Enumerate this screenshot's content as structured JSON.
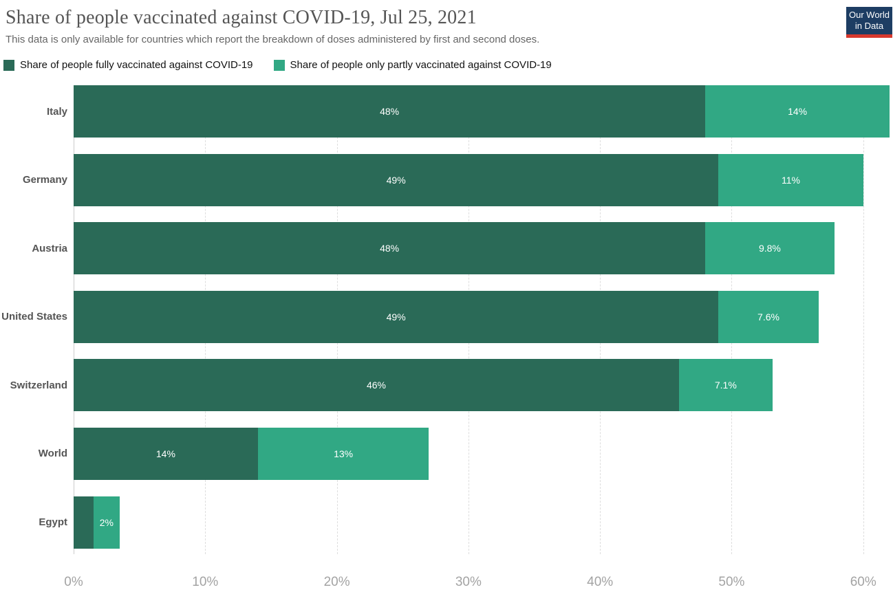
{
  "header": {
    "title": "Share of people vaccinated against COVID-19, Jul 25, 2021",
    "subtitle": "This data is only available for countries which report the breakdown of doses administered by first and second doses."
  },
  "logo": {
    "line1": "Our World",
    "line2": "in Data",
    "bg_color": "#1d3d63",
    "stripe_color": "#d7382d"
  },
  "chart_data": {
    "type": "bar",
    "orientation": "horizontal",
    "stacked": true,
    "title": "Share of people vaccinated against COVID-19, Jul 25, 2021",
    "categories": [
      "Italy",
      "Germany",
      "Austria",
      "United States",
      "Switzerland",
      "World",
      "Egypt"
    ],
    "series": [
      {
        "name": "Share of people fully vaccinated against COVID-19",
        "color": "#2a6a57",
        "values": [
          48,
          49,
          48,
          49,
          46,
          14,
          1.5
        ],
        "bar_labels": [
          "48%",
          "49%",
          "48%",
          "49%",
          "46%",
          "14%",
          ""
        ]
      },
      {
        "name": "Share of people only partly vaccinated against COVID-19",
        "color": "#31a884",
        "values": [
          14,
          11,
          9.8,
          7.6,
          7.1,
          13,
          2
        ],
        "bar_labels": [
          "14%",
          "11%",
          "9.8%",
          "7.6%",
          "7.1%",
          "13%",
          "2%"
        ]
      }
    ],
    "x_ticks": [
      {
        "value": 0,
        "label": "0%"
      },
      {
        "value": 10,
        "label": "10%"
      },
      {
        "value": 20,
        "label": "20%"
      },
      {
        "value": 30,
        "label": "30%"
      },
      {
        "value": 40,
        "label": "40%"
      },
      {
        "value": 50,
        "label": "50%"
      },
      {
        "value": 60,
        "label": "60%"
      }
    ],
    "xmax": 62,
    "grid": "vertical-dashed",
    "legend_position": "top-left"
  }
}
